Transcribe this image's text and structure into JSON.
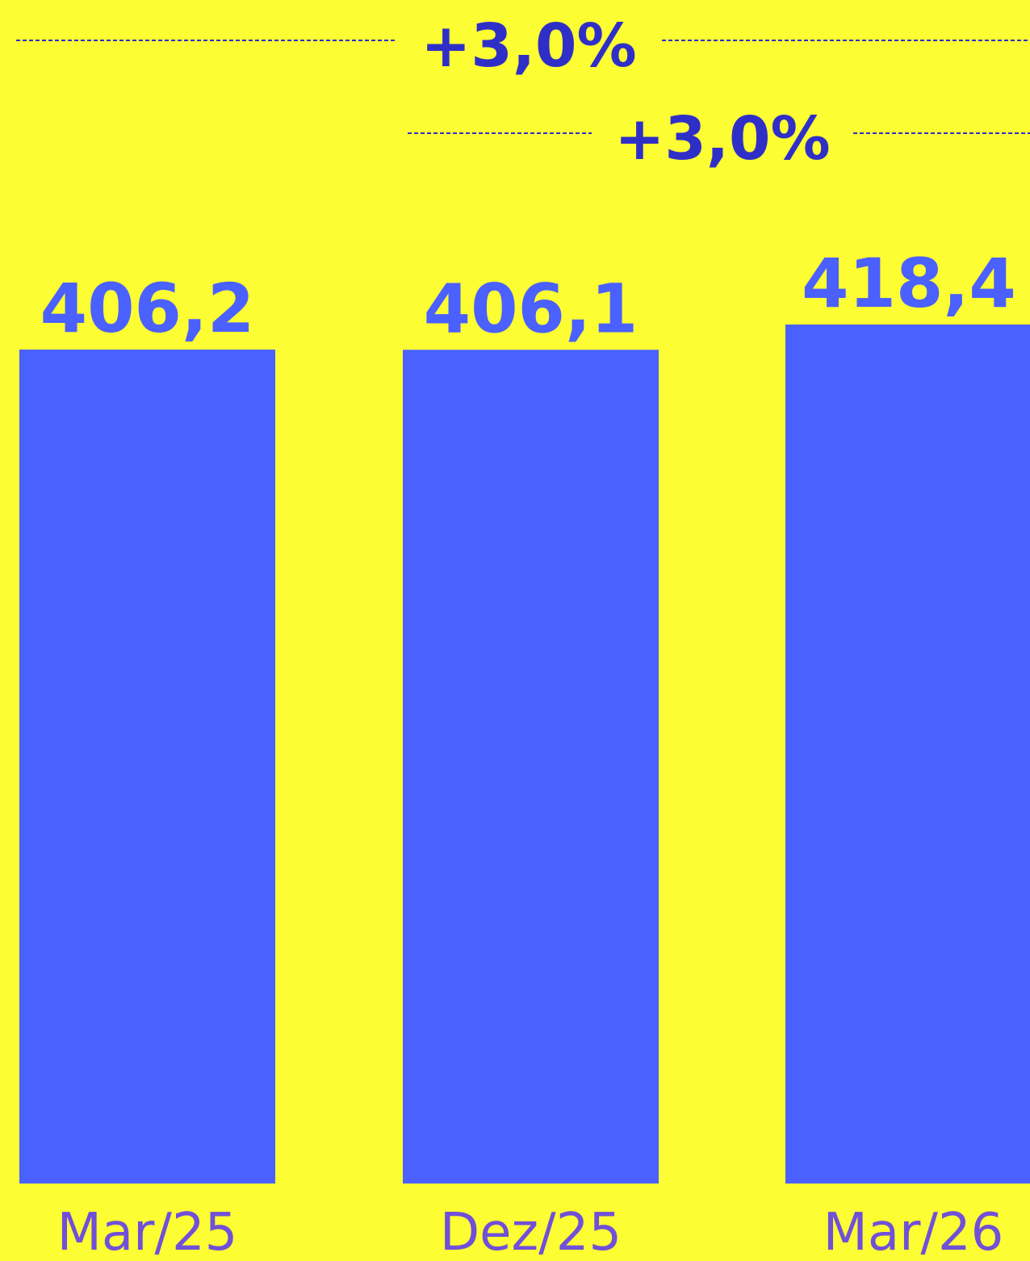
{
  "colors": {
    "background": "#fdfd33",
    "bar": "#4a61ff",
    "value_text": "#4a61ff",
    "category_text": "#7050d8",
    "change_text": "#2f2fc8",
    "dashed_line": "#2f2fc8"
  },
  "chart_data": {
    "type": "bar",
    "categories": [
      "Mar/25",
      "Dez/25",
      "Mar/26"
    ],
    "values": [
      406.2,
      406.1,
      418.4
    ],
    "value_labels": [
      "406,2",
      "406,1",
      "418,4"
    ],
    "title": "",
    "xlabel": "",
    "ylabel": "",
    "ylim": [
      0,
      418.4
    ],
    "grid": false,
    "legend": "none",
    "comparisons": [
      {
        "from": "Mar/25",
        "to": "Mar/26",
        "label": "+3,0%"
      },
      {
        "from": "Dez/25",
        "to": "Mar/26",
        "label": "+3,0%"
      }
    ]
  }
}
